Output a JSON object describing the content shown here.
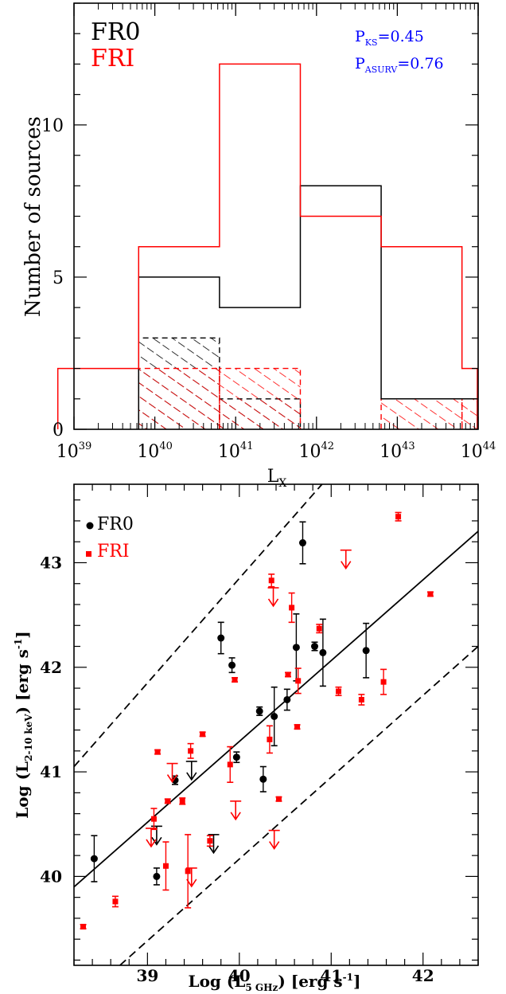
{
  "chart_data": [
    {
      "type": "bar",
      "xlabel": "L",
      "xlabel_sub": "X",
      "ylabel": "Number of sources",
      "x_scale": "log",
      "xlim_exp": [
        39,
        44
      ],
      "ylim": [
        0,
        14
      ],
      "x_ticks": [
        {
          "base": "10",
          "exp": "39",
          "v": 39
        },
        {
          "base": "10",
          "exp": "40",
          "v": 40
        },
        {
          "base": "10",
          "exp": "41",
          "v": 41
        },
        {
          "base": "10",
          "exp": "42",
          "v": 42
        },
        {
          "base": "10",
          "exp": "43",
          "v": 43
        },
        {
          "base": "10",
          "exp": "44",
          "v": 44
        }
      ],
      "y_ticks": [
        {
          "label": "0",
          "v": 0
        },
        {
          "label": "5",
          "v": 5
        },
        {
          "label": "10",
          "v": 10
        }
      ],
      "legend": [
        {
          "name": "FR0",
          "color": "#000000"
        },
        {
          "name": "FRI",
          "color": "#ff0000"
        }
      ],
      "annotations": [
        {
          "base": "P",
          "sub": "KS",
          "rest": "=0.45",
          "color": "#0000ff"
        },
        {
          "base": "P",
          "sub": "ASURV",
          "rest": "=0.76",
          "color": "#0000ff"
        }
      ],
      "series": [
        {
          "name": "FR0",
          "color": "#000000",
          "style": "solid",
          "bins": [
            [
              39.8,
              40.8,
              5
            ],
            [
              40.8,
              41.8,
              4
            ],
            [
              41.8,
              42.8,
              8
            ],
            [
              42.8,
              43.8,
              1
            ],
            [
              43.8,
              44.8,
              1
            ]
          ]
        },
        {
          "name": "FRI",
          "color": "#ff0000",
          "style": "solid",
          "bins": [
            [
              38.8,
              39.8,
              2
            ],
            [
              39.8,
              40.8,
              6
            ],
            [
              40.8,
              41.8,
              12
            ],
            [
              41.8,
              42.8,
              7
            ],
            [
              42.8,
              43.8,
              6
            ],
            [
              43.8,
              44.8,
              2
            ]
          ]
        },
        {
          "name": "FR0 upper limits",
          "color": "#000000",
          "style": "hatched",
          "bins": [
            [
              39.8,
              40.8,
              3
            ],
            [
              40.8,
              41.8,
              1
            ]
          ]
        },
        {
          "name": "FRI upper limits",
          "color": "#ff0000",
          "style": "hatched",
          "bins": [
            [
              39.8,
              40.8,
              2
            ],
            [
              40.8,
              41.8,
              2
            ],
            [
              42.8,
              43.8,
              1
            ],
            [
              43.8,
              44.8,
              1
            ]
          ]
        }
      ]
    },
    {
      "type": "scatter",
      "xlabel": "Log (L",
      "xlabel_sub": "5 GHz",
      "xlabel_unit": ") [erg s",
      "xlabel_sup": "-1",
      "xlabel_end": "]",
      "ylabel": "Log (L",
      "ylabel_sub": "2-10 keV",
      "ylabel_unit": ") [erg s",
      "ylabel_sup": "-1",
      "ylabel_end": "]",
      "xlim": [
        38.2,
        42.6
      ],
      "ylim": [
        39.15,
        43.75
      ],
      "x_ticks": [
        {
          "label": "39",
          "v": 39
        },
        {
          "label": "40",
          "v": 40
        },
        {
          "label": "41",
          "v": 41
        },
        {
          "label": "42",
          "v": 42
        }
      ],
      "y_ticks": [
        {
          "label": "40",
          "v": 40
        },
        {
          "label": "41",
          "v": 41
        },
        {
          "label": "42",
          "v": 42
        },
        {
          "label": "43",
          "v": 43
        }
      ],
      "legend": [
        {
          "name": "FR0",
          "color": "#000000",
          "marker": "circle"
        },
        {
          "name": "FRI",
          "color": "#ff0000",
          "marker": "square"
        }
      ],
      "lines": [
        {
          "style": "solid",
          "x1": 38.2,
          "y1": 39.9,
          "x2": 42.6,
          "y2": 43.3
        },
        {
          "style": "dashed",
          "x1": 38.2,
          "y1": 41.05,
          "x2": 40.9,
          "y2": 43.75
        },
        {
          "style": "dashed",
          "x1": 38.7,
          "y1": 39.15,
          "x2": 42.6,
          "y2": 42.2
        }
      ],
      "series": [
        {
          "name": "FR0",
          "color": "#000000",
          "marker": "circle",
          "points": [
            {
              "x": 38.42,
              "y": 40.17,
              "err": 0.22
            },
            {
              "x": 39.1,
              "y": 40.0,
              "err": 0.08
            },
            {
              "x": 39.3,
              "y": 40.92,
              "err": 0.04
            },
            {
              "x": 39.8,
              "y": 42.28,
              "err": 0.15
            },
            {
              "x": 39.92,
              "y": 42.02,
              "err": 0.07
            },
            {
              "x": 39.97,
              "y": 41.14,
              "err": 0.05
            },
            {
              "x": 40.22,
              "y": 41.58,
              "err": 0.04
            },
            {
              "x": 40.26,
              "y": 40.93,
              "err": 0.12
            },
            {
              "x": 40.38,
              "y": 41.53,
              "err": 0.28
            },
            {
              "x": 40.52,
              "y": 41.69,
              "err": 0.1
            },
            {
              "x": 40.62,
              "y": 42.19,
              "err": 0.32
            },
            {
              "x": 40.69,
              "y": 43.19,
              "err": 0.2
            },
            {
              "x": 40.82,
              "y": 42.2,
              "err": 0.04
            },
            {
              "x": 40.91,
              "y": 42.14,
              "err": 0.32
            },
            {
              "x": 41.38,
              "y": 42.16,
              "err": 0.26
            }
          ],
          "limits": [
            {
              "x": 39.1,
              "y": 40.48
            },
            {
              "x": 39.48,
              "y": 41.1
            },
            {
              "x": 39.72,
              "y": 40.4
            }
          ]
        },
        {
          "name": "FRI",
          "color": "#ff0000",
          "marker": "square",
          "points": [
            {
              "x": 38.3,
              "y": 39.52,
              "err": 0.02
            },
            {
              "x": 38.65,
              "y": 39.76,
              "err": 0.05
            },
            {
              "x": 39.07,
              "y": 40.55,
              "err": 0.1
            },
            {
              "x": 39.11,
              "y": 41.19,
              "err": 0.02
            },
            {
              "x": 39.2,
              "y": 40.1,
              "err": 0.23
            },
            {
              "x": 39.22,
              "y": 40.72,
              "err": 0.02
            },
            {
              "x": 39.38,
              "y": 40.72,
              "err": 0.03
            },
            {
              "x": 39.44,
              "y": 40.05,
              "err": 0.35
            },
            {
              "x": 39.47,
              "y": 41.2,
              "err": 0.07
            },
            {
              "x": 39.6,
              "y": 41.36,
              "err": 0.02
            },
            {
              "x": 39.68,
              "y": 40.34,
              "err": 0.05
            },
            {
              "x": 39.9,
              "y": 41.07,
              "err": 0.17
            },
            {
              "x": 39.95,
              "y": 41.88,
              "err": 0.02
            },
            {
              "x": 40.33,
              "y": 41.31,
              "err": 0.13
            },
            {
              "x": 40.35,
              "y": 42.83,
              "err": 0.06
            },
            {
              "x": 40.43,
              "y": 40.74,
              "err": 0.02
            },
            {
              "x": 40.53,
              "y": 41.93,
              "err": 0.02
            },
            {
              "x": 40.57,
              "y": 42.57,
              "err": 0.14
            },
            {
              "x": 40.63,
              "y": 41.43,
              "err": 0.02
            },
            {
              "x": 40.64,
              "y": 41.87,
              "err": 0.12
            },
            {
              "x": 40.87,
              "y": 42.37,
              "err": 0.04
            },
            {
              "x": 41.08,
              "y": 41.77,
              "err": 0.04
            },
            {
              "x": 41.33,
              "y": 41.69,
              "err": 0.05
            },
            {
              "x": 41.57,
              "y": 41.86,
              "err": 0.12
            },
            {
              "x": 41.73,
              "y": 43.44,
              "err": 0.04
            },
            {
              "x": 42.08,
              "y": 42.7,
              "err": 0.02
            }
          ],
          "limits": [
            {
              "x": 39.04,
              "y": 40.46
            },
            {
              "x": 39.27,
              "y": 41.08
            },
            {
              "x": 39.48,
              "y": 40.08
            },
            {
              "x": 39.96,
              "y": 40.72
            },
            {
              "x": 40.37,
              "y": 42.76
            },
            {
              "x": 40.38,
              "y": 40.44
            },
            {
              "x": 41.16,
              "y": 43.12
            }
          ]
        }
      ]
    }
  ]
}
